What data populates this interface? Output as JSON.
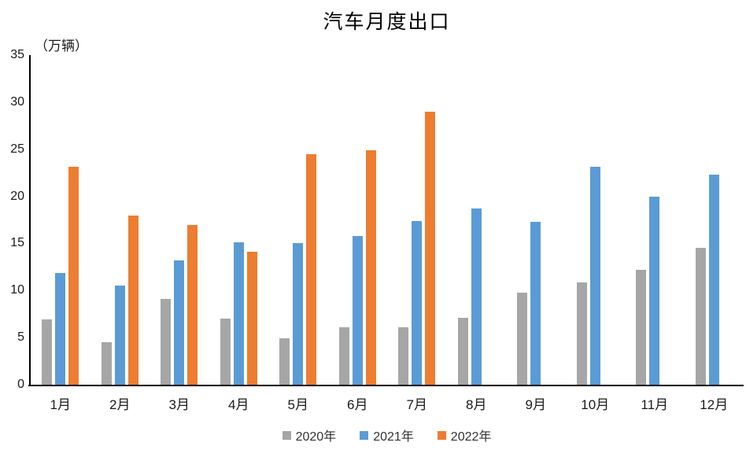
{
  "chart_data": {
    "type": "bar",
    "title": "汽车月度出口",
    "unit_label": "（万辆）",
    "xlabel": "",
    "ylabel": "万辆",
    "ylim": [
      0,
      35
    ],
    "ytick_step": 5,
    "grid": false,
    "legend_position": "bottom",
    "categories": [
      "1月",
      "2月",
      "3月",
      "4月",
      "5月",
      "6月",
      "7月",
      "8月",
      "9月",
      "10月",
      "11月",
      "12月"
    ],
    "series": [
      {
        "name": "2020年",
        "color": "#a6a6a6",
        "values": [
          6.9,
          4.5,
          9.1,
          7.0,
          4.9,
          6.1,
          6.1,
          7.1,
          9.8,
          10.9,
          12.2,
          14.5
        ]
      },
      {
        "name": "2021年",
        "color": "#5b9bd5",
        "values": [
          11.9,
          10.5,
          13.2,
          15.1,
          15.0,
          15.8,
          17.4,
          18.7,
          17.3,
          23.1,
          20.0,
          22.3
        ]
      },
      {
        "name": "2022年",
        "color": "#ed7d31",
        "values": [
          23.1,
          18.0,
          17.0,
          14.1,
          24.5,
          24.9,
          29.0,
          null,
          null,
          null,
          null,
          null
        ]
      }
    ]
  }
}
